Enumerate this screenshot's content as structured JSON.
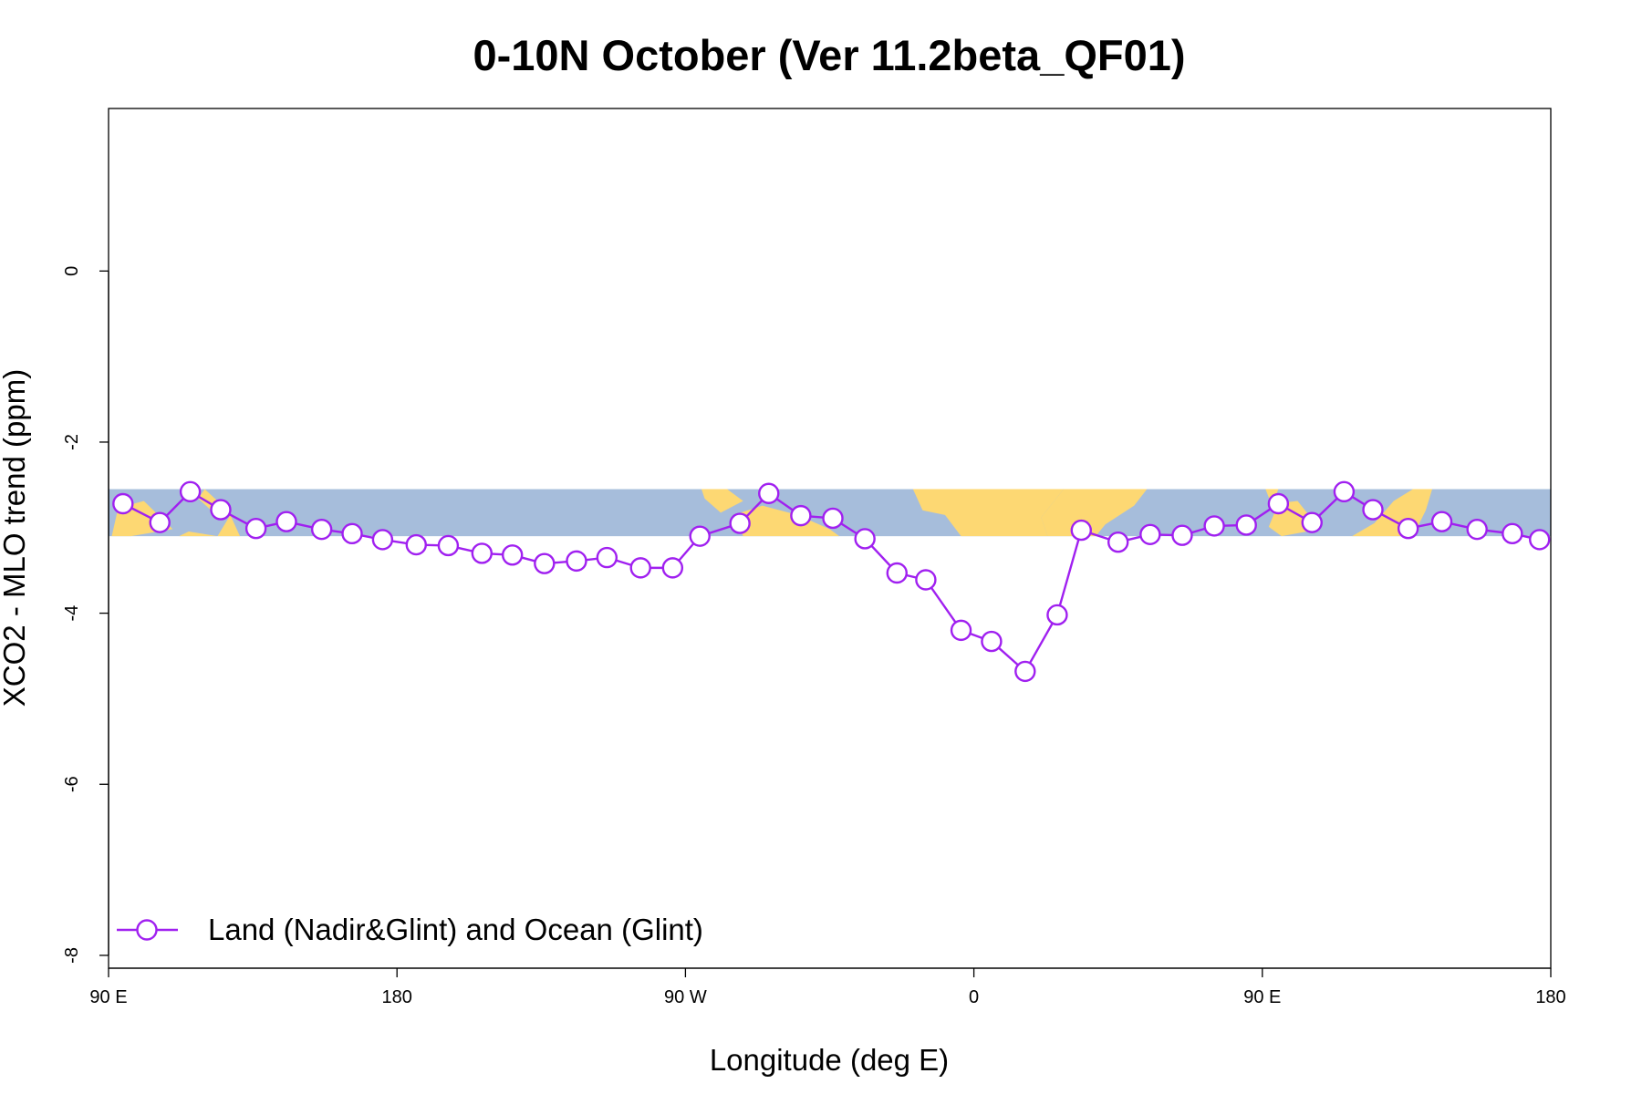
{
  "chart_data": {
    "type": "line",
    "title": "0-10N October (Ver 11.2beta_QF01)",
    "xlabel": "Longitude (deg E)",
    "ylabel": "XCO2 - MLO trend (ppm)",
    "x_ticks": [
      {
        "value": 90,
        "label": "90 E"
      },
      {
        "value": 180,
        "label": "180"
      },
      {
        "value": 270,
        "label": "90 W"
      },
      {
        "value": 360,
        "label": "0"
      },
      {
        "value": 450,
        "label": "90 E"
      },
      {
        "value": 540,
        "label": "180"
      }
    ],
    "y_ticks": [
      {
        "value": 0,
        "label": "0"
      },
      {
        "value": -2,
        "label": "-2"
      },
      {
        "value": -4,
        "label": "-4"
      },
      {
        "value": -6,
        "label": "-6"
      },
      {
        "value": -8,
        "label": "-8"
      }
    ],
    "xlim": [
      90,
      540
    ],
    "ylim": [
      -8.15,
      1.9
    ],
    "map_band_y": [
      -3.1,
      -2.55
    ],
    "colors": {
      "series": "#a020f0",
      "ocean": "#a6bddb",
      "land": "#fdd873",
      "marker_fill": "#ffffff"
    },
    "legend": {
      "placement": "bottom-left",
      "label": "Land (Nadir&Glint) and Ocean (Glint)"
    },
    "series": [
      {
        "x": [
          94.5,
          106,
          115.5,
          125,
          136,
          145.5,
          156.5,
          166,
          175.5,
          186,
          196,
          206.5,
          216,
          226,
          236,
          245.5,
          256,
          266,
          274.5,
          287,
          296,
          306,
          316,
          326,
          336,
          345,
          356,
          365.5,
          376,
          386,
          393.5,
          405,
          415,
          425,
          435,
          445,
          455,
          465.5,
          475.5,
          484.5,
          495.5,
          506,
          517,
          528,
          536.5
        ],
        "y": [
          -2.72,
          -2.94,
          -2.58,
          -2.79,
          -3.01,
          -2.93,
          -3.02,
          -3.07,
          -3.14,
          -3.2,
          -3.21,
          -3.3,
          -3.32,
          -3.42,
          -3.39,
          -3.35,
          -3.47,
          -3.47,
          -3.1,
          -2.95,
          -2.6,
          -2.86,
          -2.89,
          -3.13,
          -3.53,
          -3.61,
          -4.2,
          -4.33,
          -4.68,
          -4.02,
          -3.03,
          -3.17,
          -3.08,
          -3.09,
          -2.98,
          -2.97,
          -2.72,
          -2.94,
          -2.58,
          -2.79,
          -3.01,
          -2.93,
          -3.02,
          -3.07,
          -3.14
        ]
      }
    ]
  }
}
